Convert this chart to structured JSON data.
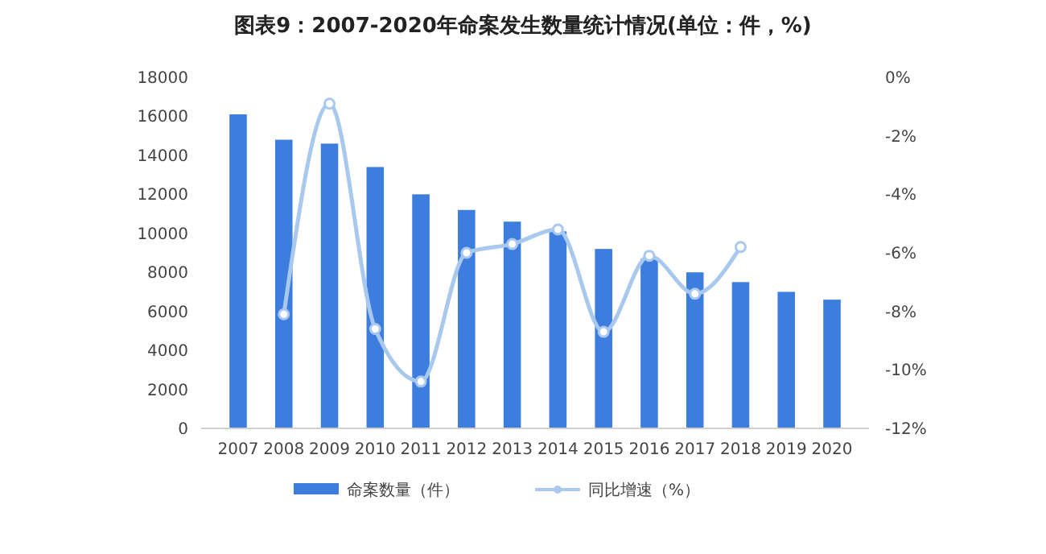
{
  "chart_data": {
    "type": "bar",
    "title": "图表9：2007-2020年命案发生数量统计情况(单位：件，%)",
    "categories": [
      "2007",
      "2008",
      "2009",
      "2010",
      "2011",
      "2012",
      "2013",
      "2014",
      "2015",
      "2016",
      "2017",
      "2018",
      "2019",
      "2020"
    ],
    "series": [
      {
        "name": "命案数量（件）",
        "color": "#3c7dde",
        "values": [
          16100,
          14800,
          14600,
          13400,
          12000,
          11200,
          10600,
          10100,
          9200,
          8700,
          8000,
          7500,
          7000,
          6600
        ]
      },
      {
        "name": "同比增速（%）",
        "type": "line",
        "axis": "y2",
        "color": "#a9c8ee",
        "marker": "circle",
        "values": [
          null,
          -8.1,
          -0.9,
          -8.6,
          -10.4,
          -6.0,
          -5.7,
          -5.2,
          -8.7,
          -6.1,
          -7.4,
          -5.8,
          null,
          null
        ]
      }
    ],
    "ylim": [
      0,
      18000
    ],
    "yticks": [
      0,
      2000,
      4000,
      6000,
      8000,
      10000,
      12000,
      14000,
      16000,
      18000
    ],
    "y2lim": [
      -12,
      0
    ],
    "y2ticks": [
      {
        "value": 0,
        "label": "0%"
      },
      {
        "value": -2,
        "label": "-2%"
      },
      {
        "value": -4,
        "label": "-4%"
      },
      {
        "value": -6,
        "label": "-6%"
      },
      {
        "value": -8,
        "label": "-8%"
      },
      {
        "value": -10,
        "label": "-10%"
      },
      {
        "value": -12,
        "label": "-12%"
      }
    ],
    "legend": "bottom",
    "grid": false
  }
}
